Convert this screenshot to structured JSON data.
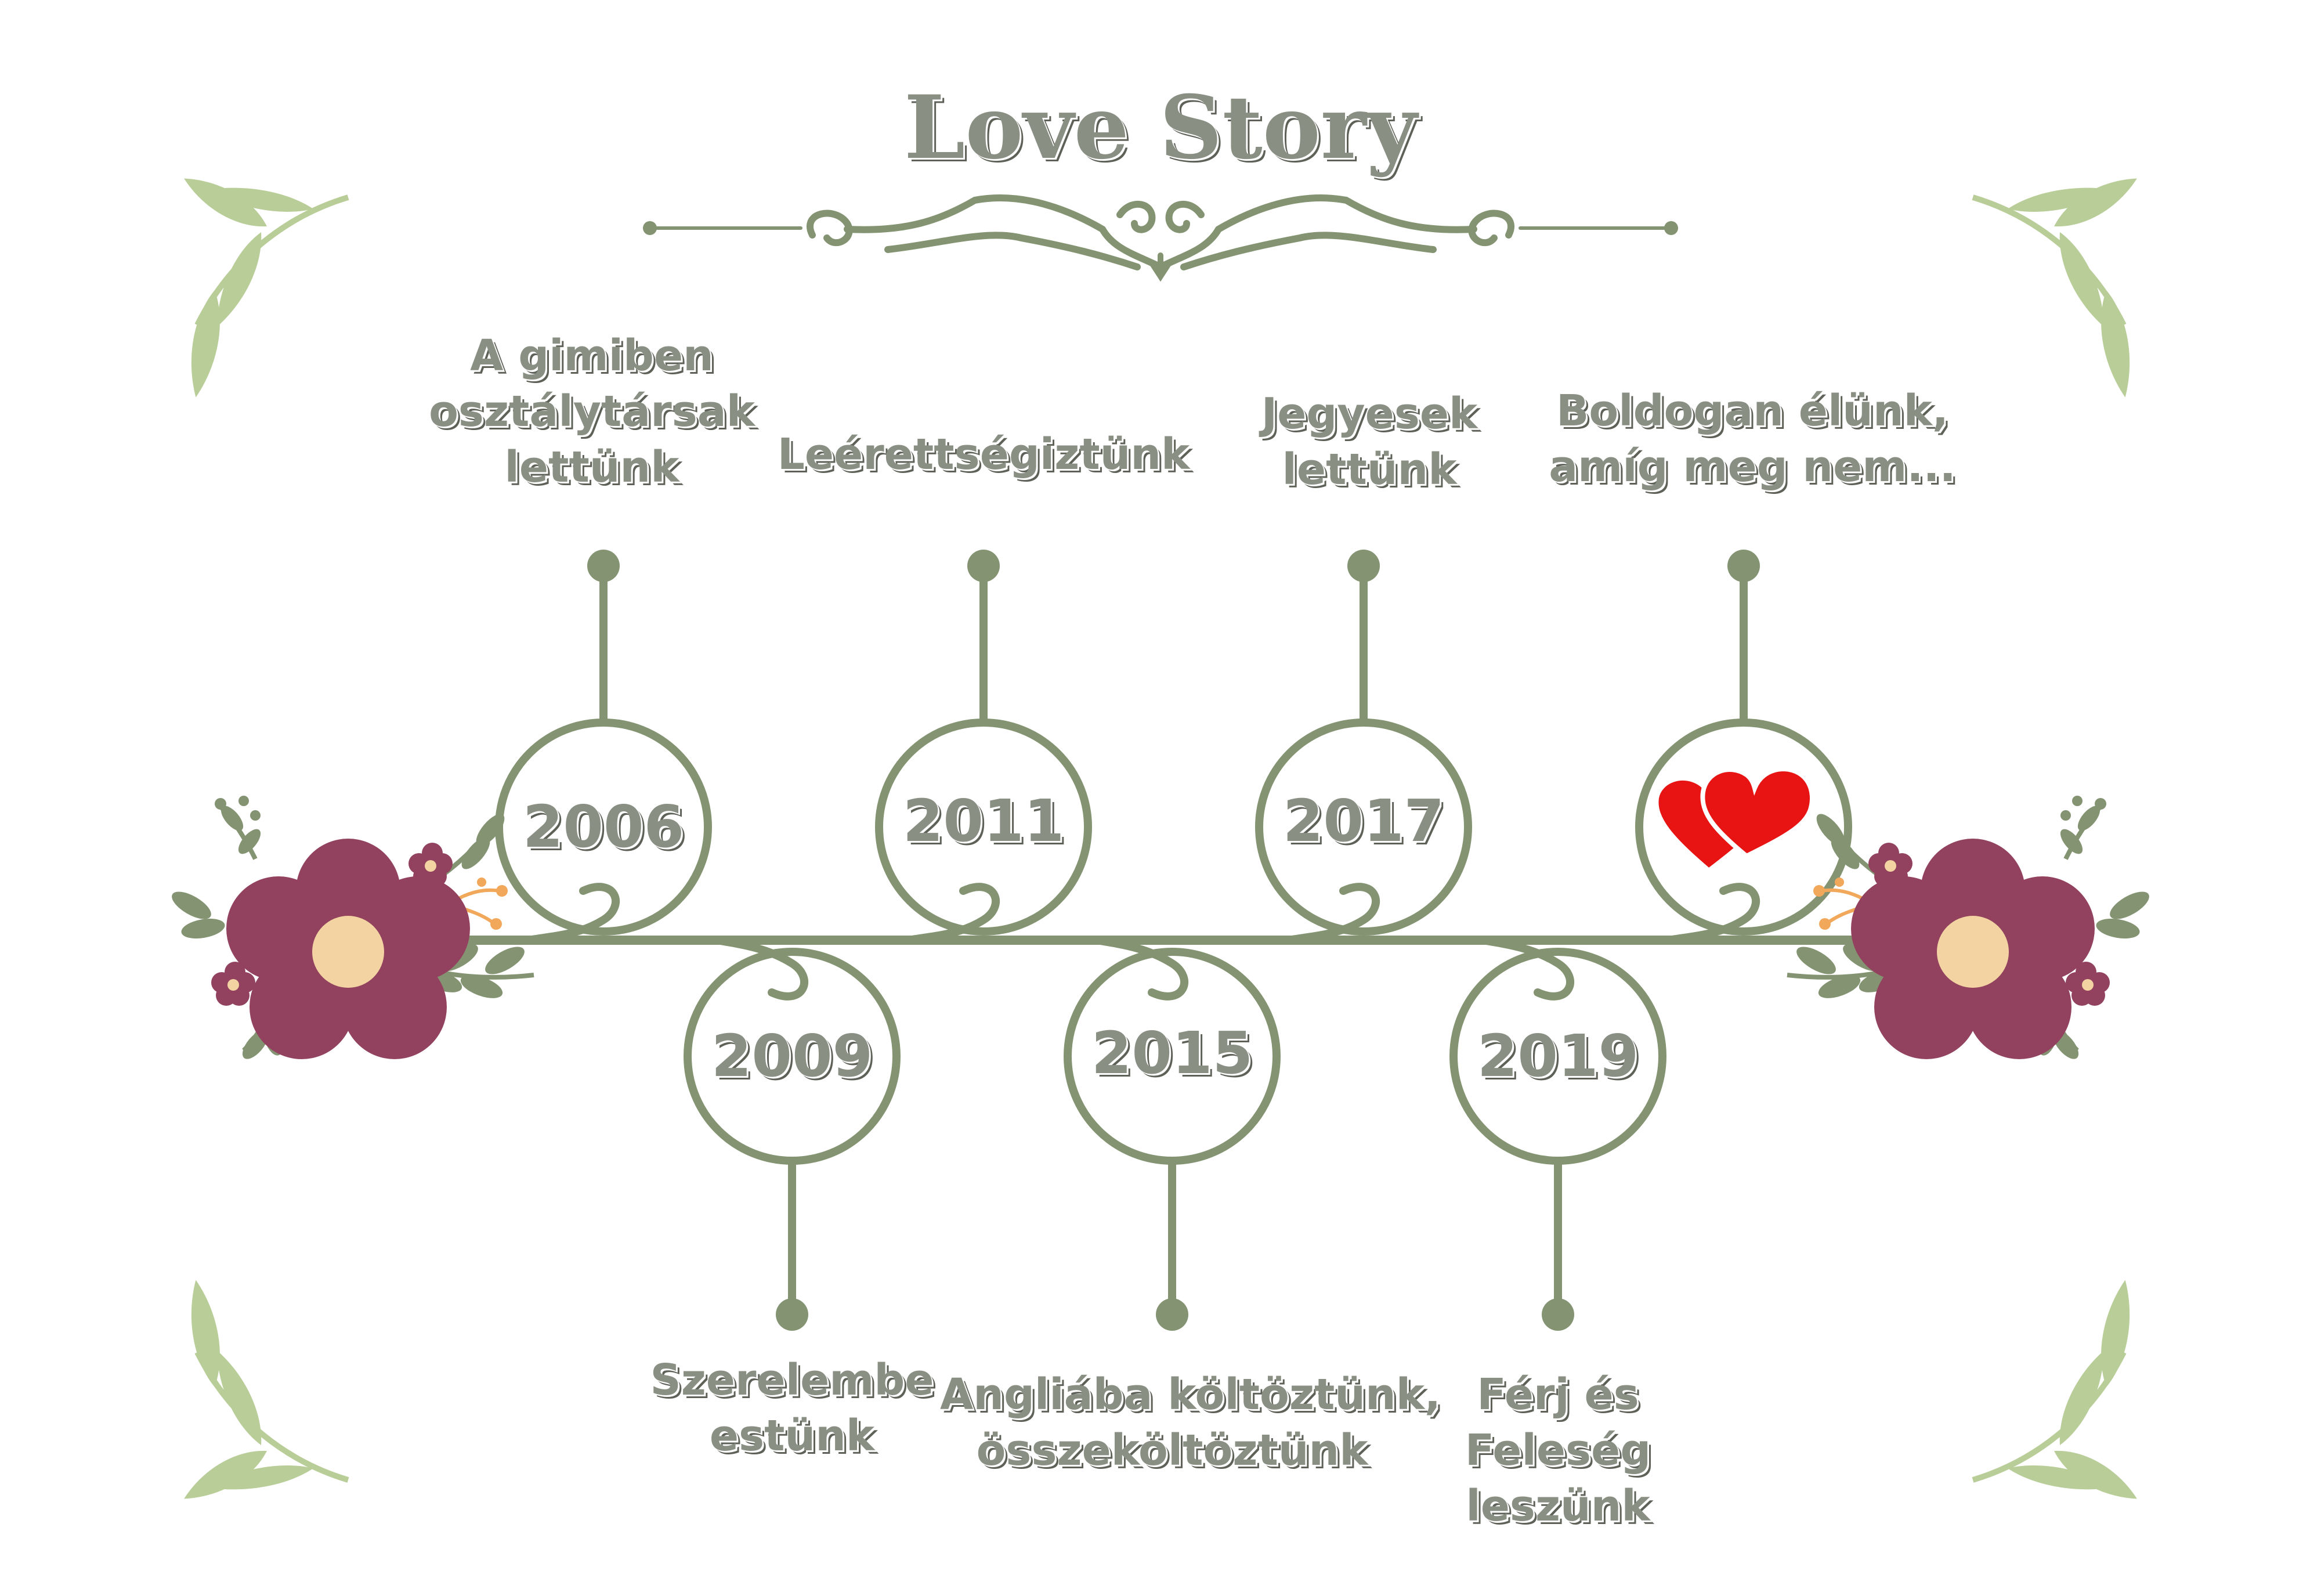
{
  "title": "Love Story",
  "colors": {
    "vine": "#849472",
    "leaf": "#b9cd98",
    "flower": "#92425f",
    "flower_center": "#f3d3a2",
    "berry_orange": "#f2a85a",
    "heart": "#e81414",
    "text": "#8a8f84",
    "text_shadow": "#5d6157"
  },
  "timeline": {
    "top": [
      {
        "year": "2006",
        "lines": [
          "A gimiben",
          "osztálytársak",
          "lettünk"
        ]
      },
      {
        "year": "2011",
        "lines": [
          "Leérettségiztünk"
        ]
      },
      {
        "year": "2017",
        "lines": [
          "Jegyesek",
          "lettünk"
        ]
      },
      {
        "year": "",
        "icon": "two-hearts-icon",
        "lines": [
          "Boldogan élünk,",
          "amíg meg nem..."
        ]
      }
    ],
    "bottom": [
      {
        "year": "2009",
        "lines": [
          "Szerelembe",
          "estünk"
        ]
      },
      {
        "year": "2015",
        "lines": [
          "Angliába költöztünk,",
          "összeköltöztünk"
        ]
      },
      {
        "year": "2019",
        "lines": [
          "Férj és",
          "Feleség",
          "leszünk"
        ]
      }
    ]
  },
  "decor": {
    "corner_icons": [
      "leaf-branch-icon",
      "leaf-branch-icon",
      "leaf-branch-icon",
      "leaf-branch-icon"
    ],
    "end_icons": [
      "flower-icon",
      "flower-icon"
    ],
    "divider_icon": "ornament-divider-icon"
  }
}
